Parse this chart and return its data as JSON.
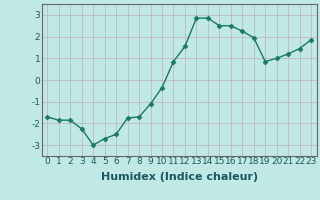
{
  "x": [
    0,
    1,
    2,
    3,
    4,
    5,
    6,
    7,
    8,
    9,
    10,
    11,
    12,
    13,
    14,
    15,
    16,
    17,
    18,
    19,
    20,
    21,
    22,
    23
  ],
  "y": [
    -1.7,
    -1.85,
    -1.85,
    -2.25,
    -3.0,
    -2.7,
    -2.5,
    -1.75,
    -1.7,
    -1.1,
    -0.35,
    0.85,
    1.55,
    2.85,
    2.85,
    2.5,
    2.5,
    2.25,
    1.95,
    0.85,
    1.0,
    1.2,
    1.45,
    1.85
  ],
  "line_color": "#1a7a5e",
  "marker": "D",
  "marker_size": 2.5,
  "background_color": "#c0e8e4",
  "grid_color": "#c0b8c0",
  "xlabel": "Humidex (Indice chaleur)",
  "xlabel_fontsize": 8,
  "ylim": [
    -3.5,
    3.5
  ],
  "xlim": [
    -0.5,
    23.5
  ],
  "yticks": [
    -3,
    -2,
    -1,
    0,
    1,
    2,
    3
  ],
  "xticks": [
    0,
    1,
    2,
    3,
    4,
    5,
    6,
    7,
    8,
    9,
    10,
    11,
    12,
    13,
    14,
    15,
    16,
    17,
    18,
    19,
    20,
    21,
    22,
    23
  ],
  "tick_fontsize": 6.5,
  "line_width": 1.0,
  "spine_color": "#666666"
}
